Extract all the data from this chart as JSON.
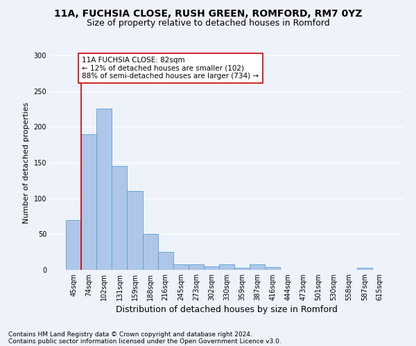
{
  "title_line1": "11A, FUCHSIA CLOSE, RUSH GREEN, ROMFORD, RM7 0YZ",
  "title_line2": "Size of property relative to detached houses in Romford",
  "xlabel": "Distribution of detached houses by size in Romford",
  "ylabel": "Number of detached properties",
  "categories": [
    "45sqm",
    "74sqm",
    "102sqm",
    "131sqm",
    "159sqm",
    "188sqm",
    "216sqm",
    "245sqm",
    "273sqm",
    "302sqm",
    "330sqm",
    "359sqm",
    "387sqm",
    "416sqm",
    "444sqm",
    "473sqm",
    "501sqm",
    "530sqm",
    "558sqm",
    "587sqm",
    "615sqm"
  ],
  "values": [
    70,
    190,
    225,
    145,
    110,
    50,
    25,
    8,
    8,
    5,
    8,
    3,
    8,
    4,
    0,
    0,
    0,
    0,
    0,
    3,
    0
  ],
  "bar_color": "#aec6e8",
  "bar_edge_color": "#5a9fd4",
  "vline_color": "#cc0000",
  "annotation_text": "11A FUCHSIA CLOSE: 82sqm\n← 12% of detached houses are smaller (102)\n88% of semi-detached houses are larger (734) →",
  "annotation_box_color": "#ffffff",
  "annotation_box_edge_color": "#cc0000",
  "ylim": [
    0,
    300
  ],
  "yticks": [
    0,
    50,
    100,
    150,
    200,
    250,
    300
  ],
  "footer_line1": "Contains HM Land Registry data © Crown copyright and database right 2024.",
  "footer_line2": "Contains public sector information licensed under the Open Government Licence v3.0.",
  "background_color": "#eef2fa",
  "grid_color": "#ffffff",
  "title_fontsize": 10,
  "subtitle_fontsize": 9,
  "xlabel_fontsize": 9,
  "ylabel_fontsize": 8,
  "footer_fontsize": 6.5,
  "annotation_fontsize": 7.5,
  "tick_fontsize": 7
}
